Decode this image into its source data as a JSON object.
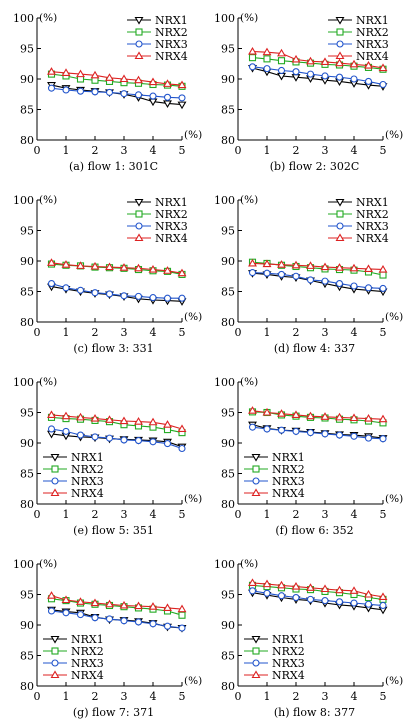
{
  "series_styles": [
    {
      "name": "NRX1",
      "color": "#000000",
      "marker": "triangle-down"
    },
    {
      "name": "NRX2",
      "color": "#22aa22",
      "marker": "square"
    },
    {
      "name": "NRX3",
      "color": "#2255cc",
      "marker": "circle"
    },
    {
      "name": "NRX4",
      "color": "#dd2222",
      "marker": "triangle-up"
    }
  ],
  "chart_data": [
    {
      "type": "line",
      "caption": "(a) flow 1: 301C",
      "x": [
        0.5,
        1,
        1.5,
        2,
        2.5,
        3,
        3.5,
        4,
        4.5,
        5
      ],
      "xticks": [
        0,
        1,
        2,
        3,
        4,
        5
      ],
      "xlabel": "(%)",
      "ylabel": "(%)",
      "xlim": [
        0,
        5
      ],
      "ylim": [
        80,
        100
      ],
      "yticks": [
        80,
        85,
        90,
        95,
        100
      ],
      "legend": "top-right",
      "series": [
        {
          "name": "NRX1",
          "values": [
            89.0,
            88.5,
            88.2,
            88.0,
            87.8,
            87.5,
            87.0,
            86.3,
            86.0,
            85.8
          ]
        },
        {
          "name": "NRX2",
          "values": [
            90.8,
            90.5,
            90.0,
            89.8,
            89.6,
            89.4,
            89.3,
            89.1,
            89.0,
            88.8
          ]
        },
        {
          "name": "NRX3",
          "values": [
            88.5,
            88.2,
            88.0,
            87.9,
            87.8,
            87.6,
            87.4,
            87.2,
            87.0,
            86.9
          ]
        },
        {
          "name": "NRX4",
          "values": [
            91.2,
            91.0,
            90.8,
            90.6,
            90.2,
            90.0,
            89.8,
            89.5,
            89.2,
            89.0
          ]
        }
      ]
    },
    {
      "type": "line",
      "caption": "(b) flow 2: 302C",
      "x": [
        0.5,
        1,
        1.5,
        2,
        2.5,
        3,
        3.5,
        4,
        4.5,
        5
      ],
      "xticks": [
        0,
        1,
        2,
        3,
        4,
        5
      ],
      "xlabel": "(%)",
      "ylabel": "(%)",
      "xlim": [
        0,
        5
      ],
      "ylim": [
        80,
        100
      ],
      "yticks": [
        80,
        85,
        90,
        95,
        100
      ],
      "legend": "top-right",
      "series": [
        {
          "name": "NRX1",
          "values": [
            91.8,
            91.2,
            90.5,
            90.3,
            90.1,
            89.8,
            89.6,
            89.3,
            89.0,
            88.8
          ]
        },
        {
          "name": "NRX2",
          "values": [
            93.5,
            93.3,
            93.0,
            92.8,
            92.6,
            92.4,
            92.3,
            92.1,
            91.9,
            91.6
          ]
        },
        {
          "name": "NRX3",
          "values": [
            92.0,
            91.7,
            91.4,
            91.2,
            90.8,
            90.5,
            90.3,
            90.0,
            89.6,
            89.1
          ]
        },
        {
          "name": "NRX4",
          "values": [
            94.5,
            94.4,
            94.2,
            93.2,
            92.9,
            92.8,
            92.6,
            92.4,
            92.2,
            91.8
          ]
        }
      ]
    },
    {
      "type": "line",
      "caption": "(c) flow 3: 331",
      "x": [
        0.5,
        1,
        1.5,
        2,
        2.5,
        3,
        3.5,
        4,
        4.5,
        5
      ],
      "xticks": [
        0,
        1,
        2,
        3,
        4,
        5
      ],
      "xlabel": "(%)",
      "ylabel": "(%)",
      "xlim": [
        0,
        5
      ],
      "ylim": [
        80,
        100
      ],
      "yticks": [
        80,
        85,
        90,
        95,
        100
      ],
      "legend": "top-right",
      "series": [
        {
          "name": "NRX1",
          "values": [
            85.8,
            85.4,
            85.0,
            84.7,
            84.5,
            84.2,
            83.8,
            83.6,
            83.5,
            83.4
          ]
        },
        {
          "name": "NRX2",
          "values": [
            89.5,
            89.3,
            89.2,
            89.0,
            88.9,
            88.8,
            88.6,
            88.4,
            88.3,
            87.8
          ]
        },
        {
          "name": "NRX3",
          "values": [
            86.3,
            85.6,
            85.2,
            84.8,
            84.6,
            84.3,
            84.2,
            84.0,
            83.9,
            83.9
          ]
        },
        {
          "name": "NRX4",
          "values": [
            89.7,
            89.4,
            89.2,
            89.1,
            89.0,
            88.9,
            88.8,
            88.6,
            88.4,
            88.0
          ]
        }
      ]
    },
    {
      "type": "line",
      "caption": "(d) flow 4: 337",
      "x": [
        0.5,
        1,
        1.5,
        2,
        2.5,
        3,
        3.5,
        4,
        4.5,
        5
      ],
      "xticks": [
        0,
        1,
        2,
        3,
        4,
        5
      ],
      "xlabel": "(%)",
      "ylabel": "(%)",
      "xlim": [
        0,
        5
      ],
      "ylim": [
        80,
        100
      ],
      "yticks": [
        80,
        85,
        90,
        95,
        100
      ],
      "legend": "top-right",
      "series": [
        {
          "name": "NRX1",
          "values": [
            88.0,
            87.8,
            87.5,
            87.3,
            86.8,
            86.3,
            85.8,
            85.4,
            85.2,
            85.0
          ]
        },
        {
          "name": "NRX2",
          "values": [
            89.8,
            89.6,
            89.3,
            89.1,
            88.9,
            88.7,
            88.6,
            88.5,
            88.2,
            87.7
          ]
        },
        {
          "name": "NRX3",
          "values": [
            88.1,
            88.0,
            87.8,
            87.5,
            86.9,
            86.7,
            86.3,
            85.9,
            85.6,
            85.5
          ]
        },
        {
          "name": "NRX4",
          "values": [
            89.6,
            89.5,
            89.4,
            89.3,
            89.2,
            89.0,
            88.9,
            88.8,
            88.7,
            88.6
          ]
        }
      ]
    },
    {
      "type": "line",
      "caption": "(e) flow 5: 351",
      "x": [
        0.5,
        1,
        1.5,
        2,
        2.5,
        3,
        3.5,
        4,
        4.5,
        5
      ],
      "xticks": [
        0,
        1,
        2,
        3,
        4,
        5
      ],
      "xlabel": "(%)",
      "ylabel": "(%)",
      "xlim": [
        0,
        5
      ],
      "ylim": [
        80,
        100
      ],
      "yticks": [
        80,
        85,
        90,
        95,
        100
      ],
      "legend": "bottom-left",
      "series": [
        {
          "name": "NRX1",
          "values": [
            91.5,
            91.2,
            91.0,
            90.9,
            90.7,
            90.6,
            90.5,
            90.4,
            90.2,
            89.4
          ]
        },
        {
          "name": "NRX2",
          "values": [
            94.2,
            94.0,
            93.9,
            93.7,
            93.5,
            93.0,
            92.8,
            92.6,
            92.2,
            91.7
          ]
        },
        {
          "name": "NRX3",
          "values": [
            92.3,
            91.9,
            91.3,
            91.0,
            90.8,
            90.5,
            90.4,
            90.2,
            89.9,
            89.1
          ]
        },
        {
          "name": "NRX4",
          "values": [
            94.6,
            94.4,
            94.2,
            94.0,
            93.8,
            93.6,
            93.5,
            93.4,
            93.0,
            92.3
          ]
        }
      ]
    },
    {
      "type": "line",
      "caption": "(f) flow 6: 352",
      "x": [
        0.5,
        1,
        1.5,
        2,
        2.5,
        3,
        3.5,
        4,
        4.5,
        5
      ],
      "xticks": [
        0,
        1,
        2,
        3,
        4,
        5
      ],
      "xlabel": "(%)",
      "ylabel": "(%)",
      "xlim": [
        0,
        5
      ],
      "ylim": [
        80,
        100
      ],
      "yticks": [
        80,
        85,
        90,
        95,
        100
      ],
      "legend": "bottom-left",
      "series": [
        {
          "name": "NRX1",
          "values": [
            93.0,
            92.4,
            92.1,
            92.0,
            91.8,
            91.6,
            91.4,
            91.3,
            91.1,
            90.8
          ]
        },
        {
          "name": "NRX2",
          "values": [
            95.1,
            95.0,
            94.6,
            94.4,
            94.2,
            94.1,
            93.9,
            93.8,
            93.6,
            93.3
          ]
        },
        {
          "name": "NRX3",
          "values": [
            92.6,
            92.3,
            92.1,
            91.9,
            91.7,
            91.5,
            91.3,
            91.1,
            90.8,
            90.7
          ]
        },
        {
          "name": "NRX4",
          "values": [
            95.3,
            95.0,
            94.8,
            94.6,
            94.4,
            94.3,
            94.2,
            94.1,
            94.0,
            93.9
          ]
        }
      ]
    },
    {
      "type": "line",
      "caption": "(g) flow 7: 371",
      "x": [
        0.5,
        1,
        1.5,
        2,
        2.5,
        3,
        3.5,
        4,
        4.5,
        5
      ],
      "xticks": [
        0,
        1,
        2,
        3,
        4,
        5
      ],
      "xlabel": "(%)",
      "ylabel": "(%)",
      "xlim": [
        0,
        5
      ],
      "ylim": [
        80,
        100
      ],
      "yticks": [
        80,
        85,
        90,
        95,
        100
      ],
      "legend": "bottom-left",
      "series": [
        {
          "name": "NRX1",
          "values": [
            92.5,
            92.2,
            92.0,
            91.3,
            90.9,
            90.8,
            90.6,
            90.3,
            89.7,
            89.5
          ]
        },
        {
          "name": "NRX2",
          "values": [
            94.3,
            94.0,
            93.6,
            93.4,
            93.2,
            93.0,
            92.8,
            92.6,
            92.3,
            91.6
          ]
        },
        {
          "name": "NRX3",
          "values": [
            92.3,
            92.0,
            91.7,
            91.2,
            91.0,
            90.7,
            90.5,
            90.2,
            89.8,
            89.5
          ]
        },
        {
          "name": "NRX4",
          "values": [
            94.8,
            94.1,
            93.8,
            93.6,
            93.4,
            93.2,
            93.1,
            93.0,
            92.8,
            92.6
          ]
        }
      ]
    },
    {
      "type": "line",
      "caption": "(h) flow 8: 377",
      "x": [
        0.5,
        1,
        1.5,
        2,
        2.5,
        3,
        3.5,
        4,
        4.5,
        5
      ],
      "xticks": [
        0,
        1,
        2,
        3,
        4,
        5
      ],
      "xlabel": "(%)",
      "ylabel": "(%)",
      "xlim": [
        0,
        5
      ],
      "ylim": [
        80,
        100
      ],
      "yticks": [
        80,
        85,
        90,
        95,
        100
      ],
      "legend": "bottom-left",
      "series": [
        {
          "name": "NRX1",
          "values": [
            95.3,
            94.9,
            94.5,
            94.2,
            94.0,
            93.6,
            93.3,
            93.1,
            92.8,
            92.5
          ]
        },
        {
          "name": "NRX2",
          "values": [
            96.5,
            96.3,
            96.1,
            95.9,
            95.8,
            95.5,
            95.3,
            95.0,
            94.5,
            94.2
          ]
        },
        {
          "name": "NRX3",
          "values": [
            95.6,
            95.2,
            94.8,
            94.5,
            94.2,
            94.0,
            93.8,
            93.6,
            93.4,
            93.2
          ]
        },
        {
          "name": "NRX4",
          "values": [
            96.9,
            96.7,
            96.5,
            96.3,
            96.1,
            95.9,
            95.7,
            95.6,
            95.0,
            94.6
          ]
        }
      ]
    }
  ]
}
